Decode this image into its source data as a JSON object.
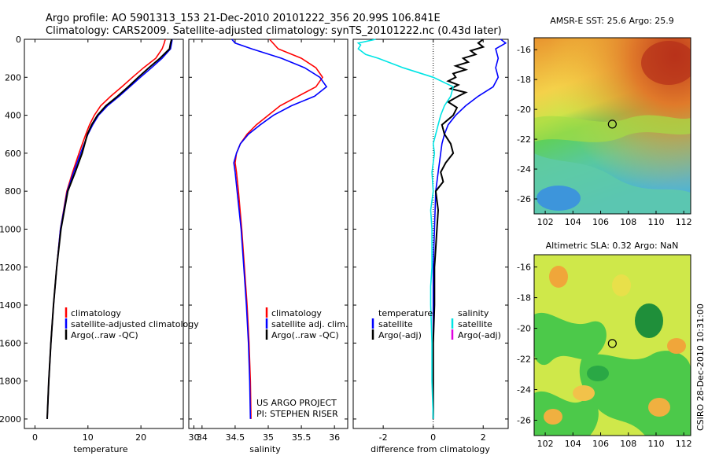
{
  "title": {
    "line1": "Argo profile: AO 5901313_153 21-Dec-2010 20101222_356 20.99S 106.841E",
    "line2": "Climatology: CARS2009. Satellite-adjusted climatology: synTS_20101222.nc (0.43d later)"
  },
  "colors": {
    "climatology": "#ff0000",
    "satellite": "#0000ff",
    "argo": "#000000",
    "argo_sal_diff": "#00e5e5",
    "magenta": "#e000e0"
  },
  "chart_data": [
    {
      "type": "line",
      "id": "temperature",
      "xlabel": "temperature",
      "xlim": [
        -2,
        28
      ],
      "ylim": [
        2050,
        0
      ],
      "xticks": [
        0,
        10,
        20,
        30
      ],
      "yticks": [
        0,
        200,
        400,
        600,
        800,
        1000,
        1200,
        1400,
        1600,
        1800,
        2000
      ],
      "legend": [
        "climatology",
        "satellite-adjusted climatology",
        "Argo(..raw -QC)"
      ],
      "series": [
        {
          "name": "climatology",
          "color": "#ff0000",
          "depth": [
            0,
            20,
            50,
            100,
            150,
            200,
            250,
            300,
            350,
            400,
            450,
            500,
            600,
            700,
            800,
            1000,
            1200,
            1400,
            1600,
            1800,
            2000
          ],
          "values": [
            24.6,
            24.4,
            24.0,
            22.8,
            20.5,
            18.4,
            16.4,
            14.3,
            12.4,
            11.2,
            10.3,
            9.6,
            8.3,
            7.1,
            6.0,
            4.8,
            4.1,
            3.5,
            3.0,
            2.6,
            2.3
          ]
        },
        {
          "name": "satellite",
          "color": "#0000ff",
          "depth": [
            0,
            20,
            50,
            100,
            150,
            200,
            250,
            300,
            350,
            400,
            450,
            500,
            600,
            700,
            800,
            1000,
            1200,
            1400,
            1600,
            1800,
            2000
          ],
          "values": [
            25.9,
            25.8,
            25.6,
            24.0,
            22.0,
            19.9,
            17.9,
            15.9,
            13.7,
            12.0,
            10.9,
            10.0,
            8.6,
            7.3,
            6.1,
            4.8,
            4.1,
            3.5,
            3.0,
            2.6,
            2.3
          ]
        },
        {
          "name": "Argo",
          "color": "#000000",
          "depth": [
            0,
            20,
            50,
            100,
            150,
            200,
            250,
            300,
            350,
            400,
            450,
            500,
            600,
            700,
            800,
            1000,
            1200,
            1400,
            1600,
            1800,
            2000
          ],
          "values": [
            25.8,
            25.6,
            25.4,
            23.6,
            21.5,
            19.5,
            17.6,
            15.6,
            13.4,
            11.8,
            10.7,
            9.9,
            8.9,
            7.6,
            6.2,
            4.9,
            4.1,
            3.5,
            3.0,
            2.6,
            2.3
          ]
        }
      ]
    },
    {
      "type": "line",
      "id": "salinity",
      "xlabel": "salinity",
      "xlim": [
        33.8,
        36.2
      ],
      "ylim": [
        2050,
        0
      ],
      "xticks": [
        34,
        34.5,
        35,
        35.5,
        36
      ],
      "legend": [
        "climatology",
        "satellite adj. clim.",
        "Argo(..raw -QC)"
      ],
      "series": [
        {
          "name": "climatology",
          "color": "#ff0000",
          "depth": [
            0,
            50,
            100,
            150,
            200,
            250,
            300,
            350,
            400,
            450,
            500,
            550,
            600,
            650,
            700,
            800,
            1000,
            1200,
            1400,
            1600,
            1800,
            2000
          ],
          "values": [
            35.02,
            35.15,
            35.5,
            35.72,
            35.82,
            35.72,
            35.45,
            35.18,
            35.0,
            34.82,
            34.68,
            34.58,
            34.52,
            34.5,
            34.52,
            34.55,
            34.6,
            34.64,
            34.68,
            34.71,
            34.73,
            34.74
          ]
        },
        {
          "name": "satellite",
          "color": "#0000ff",
          "depth": [
            0,
            20,
            50,
            100,
            150,
            200,
            250,
            300,
            350,
            400,
            450,
            500,
            550,
            600,
            650,
            700,
            800,
            1000,
            1200,
            1400,
            1600,
            1800,
            2000
          ],
          "values": [
            34.45,
            34.5,
            34.75,
            35.2,
            35.55,
            35.78,
            35.88,
            35.7,
            35.35,
            35.08,
            34.88,
            34.7,
            34.58,
            34.52,
            34.48,
            34.5,
            34.53,
            34.59,
            34.63,
            34.67,
            34.7,
            34.72,
            34.73
          ]
        }
      ],
      "annotations": [
        "US ARGO PROJECT",
        "PI: STEPHEN RISER"
      ]
    },
    {
      "type": "line",
      "id": "difference",
      "xlabel": "difference from climatology",
      "xlim": [
        -3.2,
        3.0
      ],
      "ylim": [
        2050,
        0
      ],
      "xticks": [
        -2,
        0,
        2
      ],
      "legend_left_title": "temperature",
      "legend_right_title": "salinity",
      "legend_left": [
        "satellite",
        "Argo(-adj)"
      ],
      "legend_right": [
        "satellite",
        "Argo(-adj)"
      ],
      "series": [
        {
          "name": "temperature satellite",
          "color": "#0000ff",
          "depth": [
            0,
            20,
            50,
            100,
            150,
            200,
            250,
            300,
            350,
            400,
            450,
            500,
            550,
            600,
            700,
            800,
            1000,
            1200,
            1400,
            1600,
            1800,
            2000
          ],
          "values": [
            2.7,
            2.9,
            2.5,
            2.6,
            2.5,
            2.6,
            2.4,
            1.8,
            1.3,
            0.9,
            0.6,
            0.45,
            0.35,
            0.3,
            0.2,
            0.1,
            0.05,
            0.0,
            0.0,
            0.0,
            0.0,
            0.0
          ]
        },
        {
          "name": "temperature Argo",
          "color": "#000000",
          "depth": [
            0,
            20,
            40,
            60,
            80,
            100,
            120,
            140,
            160,
            180,
            200,
            220,
            240,
            260,
            280,
            300,
            330,
            360,
            400,
            450,
            500,
            550,
            600,
            650,
            700,
            750,
            800,
            900,
            1000,
            1100,
            1200,
            1400,
            1600,
            1800,
            2000
          ],
          "values": [
            2.0,
            1.8,
            2.0,
            1.5,
            1.7,
            1.2,
            1.4,
            0.9,
            1.3,
            0.8,
            0.9,
            0.6,
            1.0,
            0.7,
            1.3,
            1.0,
            0.6,
            0.95,
            0.8,
            0.35,
            0.45,
            0.7,
            0.8,
            0.5,
            0.3,
            0.4,
            0.1,
            0.2,
            0.15,
            0.1,
            0.05,
            0.05,
            0.0,
            0.0,
            0.0
          ]
        },
        {
          "name": "salinity satellite",
          "color": "#00e5e5",
          "depth": [
            0,
            20,
            30,
            50,
            80,
            100,
            150,
            200,
            250,
            300,
            350,
            400,
            450,
            500,
            550,
            600,
            700,
            800,
            900,
            1000,
            1200,
            1300,
            1400,
            1600,
            1800,
            2000
          ],
          "values": [
            -2.3,
            -3.0,
            -2.9,
            -3.0,
            -2.7,
            -2.2,
            -1.2,
            0.0,
            0.8,
            0.7,
            0.45,
            0.3,
            0.2,
            0.1,
            0.0,
            0.05,
            -0.05,
            0.0,
            -0.1,
            -0.05,
            -0.05,
            -0.1,
            -0.1,
            -0.05,
            -0.05,
            0.0
          ]
        }
      ]
    }
  ],
  "maps": [
    {
      "id": "sst",
      "type": "heatmap",
      "title": "AMSR-E SST: 25.6 Argo: 25.9",
      "xticks": [
        "102",
        "104",
        "106",
        "108",
        "110",
        "112"
      ],
      "yticks": [
        "-16",
        "-18",
        "-20",
        "-22",
        "-24",
        "-26"
      ],
      "xlim": [
        101.2,
        112.5
      ],
      "ylim": [
        -27.0,
        -15.2
      ],
      "argo_position": [
        106.841,
        -20.99
      ]
    },
    {
      "id": "sla",
      "type": "heatmap",
      "title": "Altimetric SLA: 0.32 Argo: NaN",
      "xticks": [
        "102",
        "104",
        "106",
        "108",
        "110",
        "112"
      ],
      "yticks": [
        "-16",
        "-18",
        "-20",
        "-22",
        "-24",
        "-26"
      ],
      "xlim": [
        101.2,
        112.5
      ],
      "ylim": [
        -27.0,
        -15.2
      ],
      "argo_position": [
        106.841,
        -20.99
      ]
    }
  ],
  "footer_stamp": "CSIRO 28-Dec-2010 10:31:00"
}
